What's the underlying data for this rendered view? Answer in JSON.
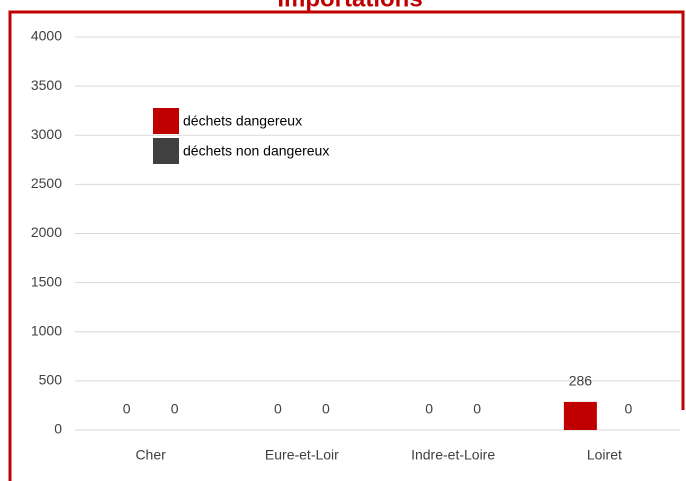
{
  "chart_data": {
    "type": "bar",
    "title": "Importations",
    "categories": [
      "Cher",
      "Eure-et-Loir",
      "Indre-et-Loire",
      "Loiret"
    ],
    "series": [
      {
        "name": "déchets dangereux",
        "color": "#c00000",
        "values": [
          0,
          0,
          0,
          286
        ]
      },
      {
        "name": "déchets non dangereux",
        "color": "#404040",
        "values": [
          0,
          0,
          0,
          0
        ]
      }
    ],
    "ylim": [
      0,
      4000
    ],
    "yticks": [
      0,
      500,
      1000,
      1500,
      2000,
      2500,
      3000,
      3500,
      4000
    ],
    "grid": true,
    "legend": "top-left",
    "title_color": "#c00000"
  }
}
